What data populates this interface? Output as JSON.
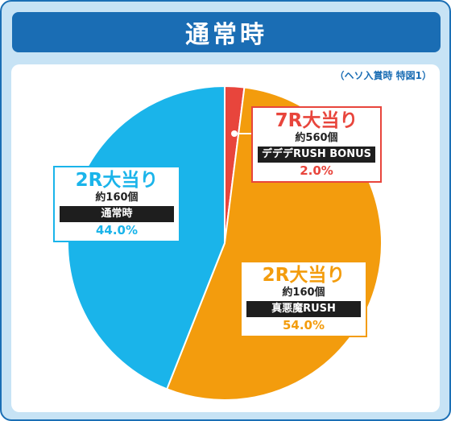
{
  "header": {
    "title": "通常時"
  },
  "note": "（ヘソ入賞時 特図1）",
  "chart_data": {
    "type": "pie",
    "slices": [
      {
        "round": "7R大当り",
        "count": "約560個",
        "mode": "デデデRUSH BONUS",
        "percent": 2.0,
        "percent_label": "2.0%",
        "color": "#e8453c"
      },
      {
        "round": "2R大当り",
        "count": "約160個",
        "mode": "真悪魔RUSH",
        "percent": 54.0,
        "percent_label": "54.0%",
        "color": "#f39c0d"
      },
      {
        "round": "2R大当り",
        "count": "約160個",
        "mode": "通常時",
        "percent": 44.0,
        "percent_label": "44.0%",
        "color": "#1ab4ea"
      }
    ]
  }
}
